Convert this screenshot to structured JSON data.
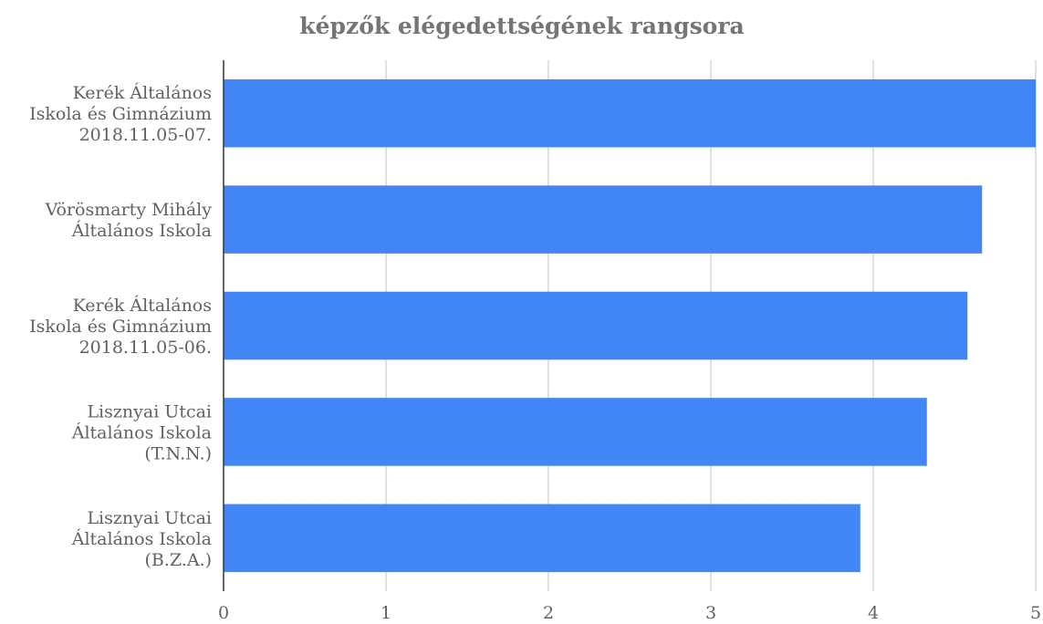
{
  "chart_data": {
    "type": "bar",
    "orientation": "horizontal",
    "title": "képzők elégedettségének rangsora",
    "xlabel": "",
    "ylabel": "",
    "categories": [
      [
        "Kerék Általános",
        "Iskola és Gimnázium",
        "2018.11.05-07."
      ],
      [
        "Vörösmarty Mihály",
        "Általános Iskola"
      ],
      [
        "Kerék Általános",
        "Iskola és Gimnázium",
        "2018.11.05-06."
      ],
      [
        "Lisznyai Utcai",
        "Általános Iskola",
        "(T.N.N.)"
      ],
      [
        "Lisznyai Utcai",
        "Általános Iskola",
        "(B.Z.A.)"
      ]
    ],
    "values": [
      5.0,
      4.67,
      4.58,
      4.33,
      3.92
    ],
    "xlim": [
      0,
      5
    ],
    "xticks": [
      "0",
      "1",
      "2",
      "3",
      "4",
      "5"
    ],
    "grid": true,
    "legend": "none",
    "colors": {
      "bar": "#4285f4",
      "grid": "#cccccc",
      "axis": "#333333",
      "text": "#616161",
      "title": "#757575"
    }
  }
}
